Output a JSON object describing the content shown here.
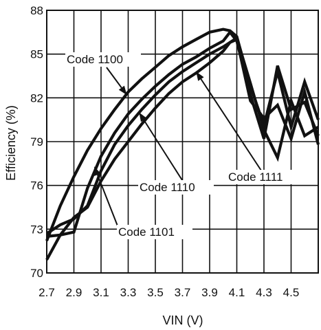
{
  "chart_data": {
    "type": "line",
    "title": "",
    "xlabel": "VIN (V)",
    "ylabel": "Efficiency (%)",
    "xlim": [
      2.7,
      4.7
    ],
    "ylim": [
      70,
      88
    ],
    "xticks": [
      2.7,
      2.9,
      3.1,
      3.3,
      3.5,
      3.7,
      3.9,
      4.1,
      4.3,
      4.5
    ],
    "xtick_labels": [
      "2.7",
      "2.9",
      "3.1",
      "3.3",
      "3.5",
      "3.7",
      "3.9",
      "4.1",
      "4.3",
      "4.5"
    ],
    "yticks": [
      70,
      73,
      76,
      79,
      82,
      85,
      88
    ],
    "ytick_labels": [
      "70",
      "73",
      "76",
      "79",
      "82",
      "85",
      "88"
    ],
    "grid": true,
    "line_color": "#111111",
    "series": [
      {
        "name": "Code 1100",
        "x": [
          2.7,
          2.8,
          2.9,
          3.0,
          3.1,
          3.2,
          3.3,
          3.4,
          3.5,
          3.6,
          3.7,
          3.8,
          3.9,
          4.0,
          4.05,
          4.1,
          4.2,
          4.3,
          4.4,
          4.5,
          4.6,
          4.7
        ],
        "y": [
          72.2,
          74.6,
          76.6,
          78.4,
          79.9,
          81.2,
          82.4,
          83.3,
          84.1,
          84.9,
          85.5,
          86.0,
          86.5,
          86.7,
          86.6,
          86.2,
          82.8,
          80.1,
          83.8,
          80.0,
          83.1,
          80.5
        ]
      },
      {
        "name": "Code 1101",
        "x": [
          2.7,
          2.8,
          2.9,
          3.0,
          3.1,
          3.2,
          3.3,
          3.4,
          3.5,
          3.6,
          3.7,
          3.8,
          3.9,
          4.0,
          4.05,
          4.1,
          4.2,
          4.3,
          4.4,
          4.5,
          4.6,
          4.7
        ],
        "y": [
          70.9,
          72.6,
          73.8,
          74.5,
          76.3,
          77.8,
          79.0,
          80.2,
          81.3,
          82.3,
          83.1,
          83.7,
          84.4,
          85.2,
          85.8,
          86.1,
          83.0,
          79.8,
          77.9,
          81.8,
          79.4,
          80.0
        ]
      },
      {
        "name": "Code 1110",
        "x": [
          2.7,
          2.8,
          2.9,
          3.0,
          3.1,
          3.2,
          3.3,
          3.4,
          3.5,
          3.6,
          3.7,
          3.8,
          3.9,
          4.0,
          4.05,
          4.1,
          4.2,
          4.3,
          4.4,
          4.5,
          4.6,
          4.7
        ],
        "y": [
          72.5,
          72.6,
          72.8,
          75.8,
          78.0,
          79.6,
          80.9,
          81.9,
          82.8,
          83.6,
          84.3,
          84.8,
          85.4,
          85.9,
          86.5,
          85.9,
          82.2,
          79.2,
          84.2,
          81.2,
          81.7,
          79.4
        ]
      },
      {
        "name": "Code 1111",
        "x": [
          2.7,
          2.8,
          2.9,
          3.0,
          3.1,
          3.2,
          3.3,
          3.4,
          3.5,
          3.6,
          3.7,
          3.8,
          3.9,
          4.0,
          4.05,
          4.1,
          4.2,
          4.3,
          4.4,
          4.5,
          4.6,
          4.7
        ],
        "y": [
          72.7,
          73.3,
          73.7,
          74.6,
          77.0,
          78.8,
          80.1,
          81.2,
          82.2,
          83.1,
          83.8,
          84.4,
          85.0,
          85.5,
          85.8,
          86.0,
          81.8,
          80.6,
          81.5,
          79.2,
          82.4,
          78.8
        ]
      }
    ],
    "annotations": [
      {
        "text": "Code 1100",
        "series": "Code 1100",
        "x": 3.29,
        "y": 82.2
      },
      {
        "text": "Code 1101",
        "series": "Code 1101",
        "x": 3.05,
        "y": 77.3
      },
      {
        "text": "Code 1110",
        "series": "Code 1110",
        "x": 3.38,
        "y": 81.0
      },
      {
        "text": "Code 1111",
        "series": "Code 1111",
        "x": 3.8,
        "y": 83.8
      }
    ]
  }
}
